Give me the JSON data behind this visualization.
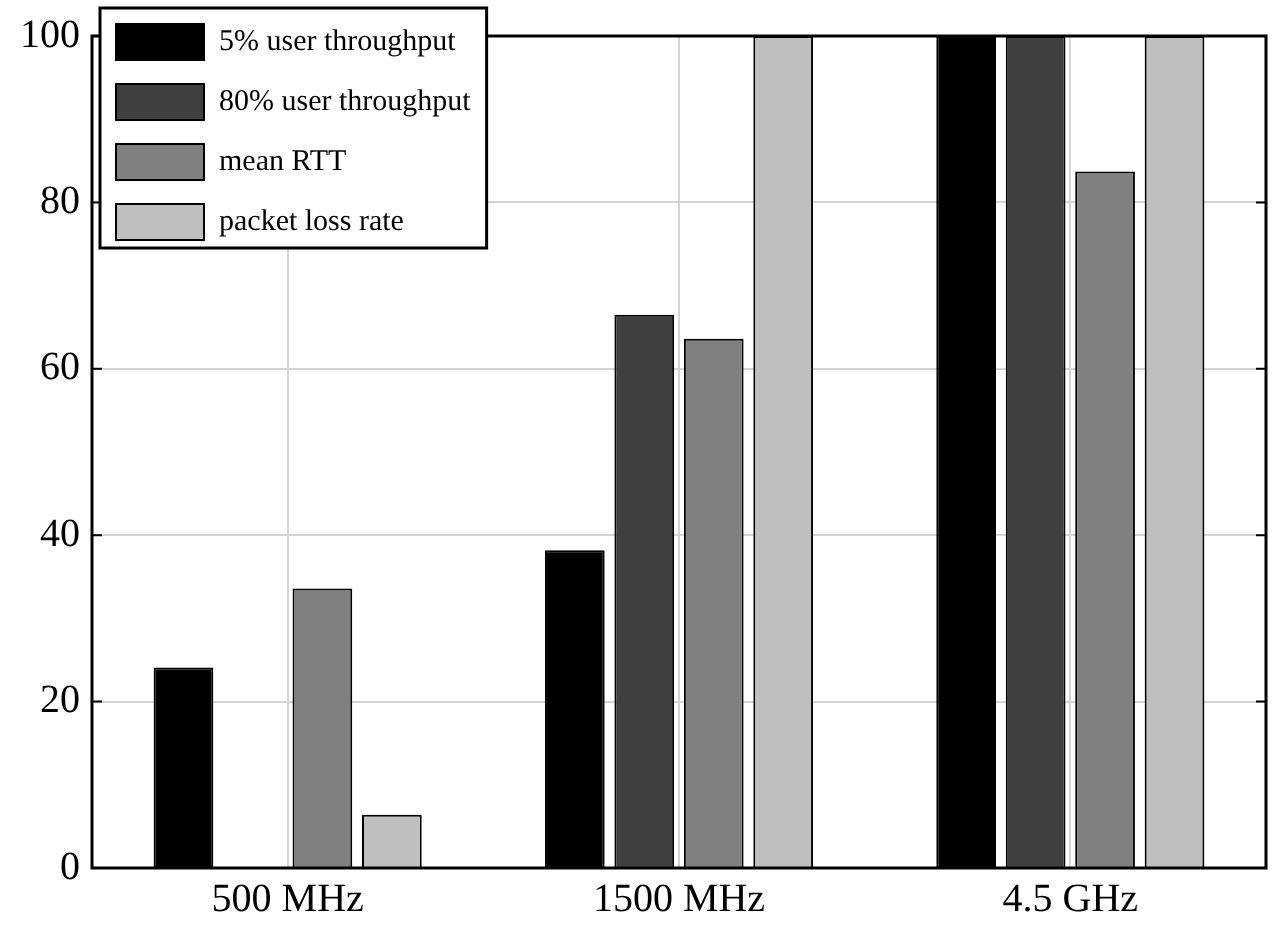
{
  "chart_data": {
    "type": "bar",
    "categories": [
      "500 MHz",
      "1500 MHz",
      "4.5 GHz"
    ],
    "series": [
      {
        "name": "5% user throughput",
        "color": "#000000",
        "values": [
          24.1,
          38.2,
          100
        ]
      },
      {
        "name": "80% user throughput",
        "color": "#404040",
        "values": [
          0,
          66.5,
          100
        ]
      },
      {
        "name": "mean RTT",
        "color": "#808080",
        "values": [
          33.6,
          63.6,
          83.7
        ]
      },
      {
        "name": "packet loss rate",
        "color": "#bfbfbf",
        "values": [
          6.4,
          100,
          100
        ]
      }
    ],
    "ylim": [
      0,
      100
    ],
    "yticks": [
      0,
      20,
      40,
      60,
      80,
      100
    ],
    "grid": true,
    "legend": "top left"
  }
}
